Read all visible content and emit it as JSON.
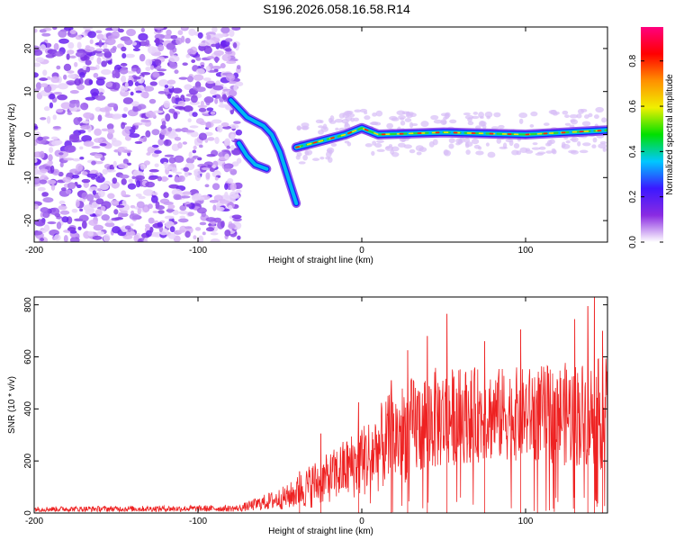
{
  "title": "S196.2026.058.16.58.R14",
  "chart_data": [
    {
      "type": "heatmap",
      "title": "S196.2026.058.16.58.R14",
      "xlabel": "Height of straight line (km)",
      "ylabel": "Frequency (Hz)",
      "xlim": [
        -200,
        150
      ],
      "ylim": [
        -25,
        25
      ],
      "xticks": [
        -200,
        -100,
        0,
        100
      ],
      "yticks": [
        -20,
        -10,
        0,
        10,
        20
      ],
      "noise_region_x": [
        -200,
        -77
      ],
      "trace": {
        "description_points": [
          {
            "x": -80,
            "y": 8
          },
          {
            "x": -75,
            "y": 6
          },
          {
            "x": -70,
            "y": 4
          },
          {
            "x": -65,
            "y": 3
          },
          {
            "x": -60,
            "y": 2
          },
          {
            "x": -55,
            "y": 0
          },
          {
            "x": -50,
            "y": -4
          },
          {
            "x": -45,
            "y": -10
          },
          {
            "x": -40,
            "y": -16
          }
        ],
        "lower_branch": [
          {
            "x": -75,
            "y": -2
          },
          {
            "x": -70,
            "y": -5
          },
          {
            "x": -65,
            "y": -7
          },
          {
            "x": -58,
            "y": -8
          }
        ],
        "flat_branch": [
          {
            "x": -40,
            "y": -3
          },
          {
            "x": -30,
            "y": -2
          },
          {
            "x": -20,
            "y": -1
          },
          {
            "x": -10,
            "y": 0
          },
          {
            "x": 0,
            "y": 1.5
          },
          {
            "x": 10,
            "y": 0
          },
          {
            "x": 50,
            "y": 0.5
          },
          {
            "x": 100,
            "y": 0
          },
          {
            "x": 150,
            "y": 1
          }
        ]
      },
      "colorbar": {
        "label": "Normalized spectral amplitude",
        "ticks": [
          0.0,
          0.2,
          0.4,
          0.6,
          0.8
        ],
        "range": [
          0,
          0.95
        ],
        "colors": [
          "#ffffff",
          "#8a2be2",
          "#3b18ff",
          "#00c8ff",
          "#00e000",
          "#f0f000",
          "#ff9000",
          "#ff0000",
          "#ff007f"
        ]
      }
    },
    {
      "type": "line",
      "xlabel": "Height of straight line (km)",
      "ylabel": "SNR (10 * v/v)",
      "xlim": [
        -200,
        150
      ],
      "ylim": [
        0,
        830
      ],
      "xticks": [
        -200,
        -100,
        0,
        100
      ],
      "yticks": [
        0,
        200,
        400,
        600,
        800
      ],
      "series": [
        {
          "name": "SNR",
          "color": "#ee2222",
          "envelope": [
            {
              "x": -200,
              "low": 5,
              "high": 25
            },
            {
              "x": -75,
              "low": 5,
              "high": 30
            },
            {
              "x": -60,
              "low": 10,
              "high": 70
            },
            {
              "x": -45,
              "low": 15,
              "high": 110
            },
            {
              "x": -30,
              "low": 20,
              "high": 200
            },
            {
              "x": -20,
              "low": 40,
              "high": 230
            },
            {
              "x": -10,
              "low": 50,
              "high": 290
            },
            {
              "x": 0,
              "low": 60,
              "high": 340
            },
            {
              "x": 20,
              "low": 100,
              "high": 480
            },
            {
              "x": 40,
              "low": 150,
              "high": 560
            },
            {
              "x": 60,
              "low": 190,
              "high": 560
            },
            {
              "x": 100,
              "low": 200,
              "high": 560
            },
            {
              "x": 150,
              "low": 160,
              "high": 600
            }
          ],
          "peaks": [
            {
              "x": -38,
              "y": 160
            },
            {
              "x": -25,
              "y": 305
            },
            {
              "x": -2,
              "y": 425
            },
            {
              "x": 18,
              "y": 510
            },
            {
              "x": 28,
              "y": 625
            },
            {
              "x": 40,
              "y": 680
            },
            {
              "x": 52,
              "y": 765
            },
            {
              "x": 75,
              "y": 660
            },
            {
              "x": 97,
              "y": 705
            },
            {
              "x": 130,
              "y": 745
            },
            {
              "x": 138,
              "y": 795
            },
            {
              "x": 142,
              "y": 830
            },
            {
              "x": 147,
              "y": 700
            }
          ]
        }
      ]
    }
  ]
}
